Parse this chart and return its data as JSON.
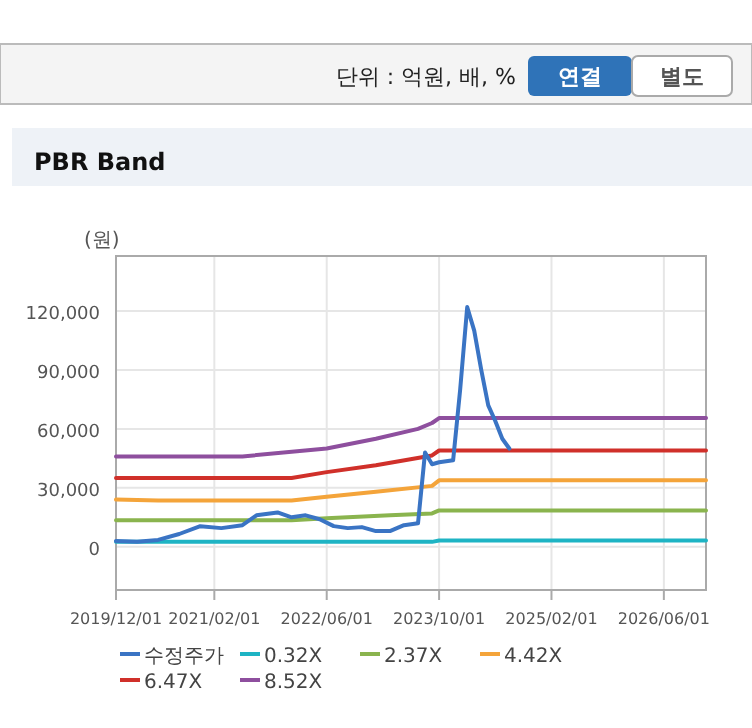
{
  "chart_data": {
    "type": "line",
    "title": "PBR Band",
    "ylabel": "(원)",
    "annotations": [
      "단위 : 억원, 배, %",
      "연결",
      "별도"
    ],
    "xlim": [
      "2019-12",
      "2026-12"
    ],
    "xticks": [
      {
        "value": "2019-12",
        "label": "2019/12/01"
      },
      {
        "value": "2021-02",
        "label": "2021/02/01"
      },
      {
        "value": "2022-06",
        "label": "2022/06/01"
      },
      {
        "value": "2023-10",
        "label": "2023/10/01"
      },
      {
        "value": "2025-02",
        "label": "2025/02/01"
      },
      {
        "value": "2026-06",
        "label": "2026/06/01"
      }
    ],
    "ylim": [
      -22000,
      148000
    ],
    "yticks": [
      0,
      {
        "value": 30000,
        "label": "30,000"
      },
      {
        "value": 60000,
        "label": "60,000"
      },
      {
        "value": 90000,
        "label": "90,000"
      },
      {
        "value": 120000,
        "label": "120,000"
      }
    ],
    "grid": true,
    "legend": "bottom",
    "marker": "none",
    "line_style": "solid",
    "series": [
      {
        "name": "수정주가",
        "color": "#3a74c4",
        "x": [
          "2019-12",
          "2020-03",
          "2020-06",
          "2020-09",
          "2020-12",
          "2021-03",
          "2021-06",
          "2021-08",
          "2021-11",
          "2022-01",
          "2022-03",
          "2022-05",
          "2022-07",
          "2022-09",
          "2022-11",
          "2023-01",
          "2023-03",
          "2023-05",
          "2023-07",
          "2023-08",
          "2023-09",
          "2023-10",
          "2023-12",
          "2024-01",
          "2024-02",
          "2024-03",
          "2024-04",
          "2024-05",
          "2024-06",
          "2024-07",
          "2024-08"
        ],
        "values": [
          3000,
          2500,
          3500,
          6500,
          10500,
          9500,
          11000,
          16000,
          17500,
          15000,
          16000,
          14000,
          10500,
          9500,
          10000,
          8000,
          8000,
          11000,
          12000,
          48000,
          42000,
          43000,
          44000,
          80000,
          122000,
          110000,
          90000,
          72000,
          64000,
          55000,
          50000
        ]
      },
      {
        "name": "0.32X",
        "color": "#1eb4c4",
        "x": [
          "2019-12",
          "2023-09",
          "2023-10",
          "2026-12"
        ],
        "values": [
          2500,
          2500,
          3200,
          3200
        ]
      },
      {
        "name": "2.37X",
        "color": "#8ab44e",
        "x": [
          "2019-12",
          "2022-01",
          "2022-06",
          "2023-03",
          "2023-09",
          "2023-10",
          "2026-12"
        ],
        "values": [
          13500,
          13500,
          14500,
          16000,
          17000,
          18500,
          18500
        ]
      },
      {
        "name": "4.42X",
        "color": "#f4a43a",
        "x": [
          "2019-12",
          "2020-06",
          "2022-01",
          "2022-06",
          "2023-01",
          "2023-09",
          "2023-10",
          "2026-12"
        ],
        "values": [
          24000,
          23500,
          23500,
          25500,
          28000,
          31000,
          33800,
          33800
        ]
      },
      {
        "name": "6.47X",
        "color": "#d0302a",
        "x": [
          "2019-12",
          "2022-01",
          "2022-06",
          "2023-01",
          "2023-09",
          "2023-10",
          "2026-12"
        ],
        "values": [
          35000,
          35000,
          38000,
          41500,
          46500,
          49000,
          49000
        ]
      },
      {
        "name": "8.52X",
        "color": "#8e4f9e",
        "x": [
          "2019-12",
          "2021-06",
          "2022-06",
          "2023-01",
          "2023-07",
          "2023-09",
          "2023-10",
          "2026-12"
        ],
        "values": [
          46000,
          46000,
          50000,
          55000,
          60000,
          63000,
          65500,
          65500
        ]
      }
    ]
  }
}
